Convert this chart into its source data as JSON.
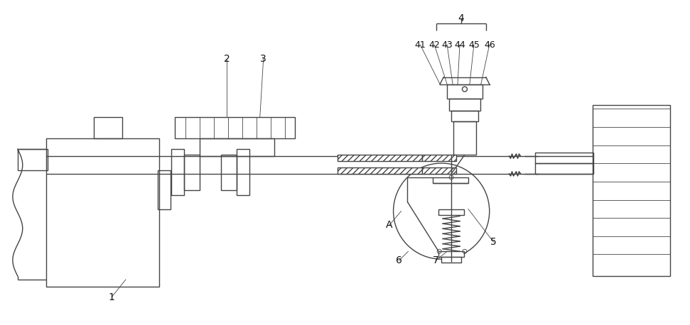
{
  "bg_color": "#ffffff",
  "line_color": "#444444",
  "lw": 1.0,
  "tlw": 0.6,
  "fig_width": 9.71,
  "fig_height": 4.58,
  "dpi": 100
}
